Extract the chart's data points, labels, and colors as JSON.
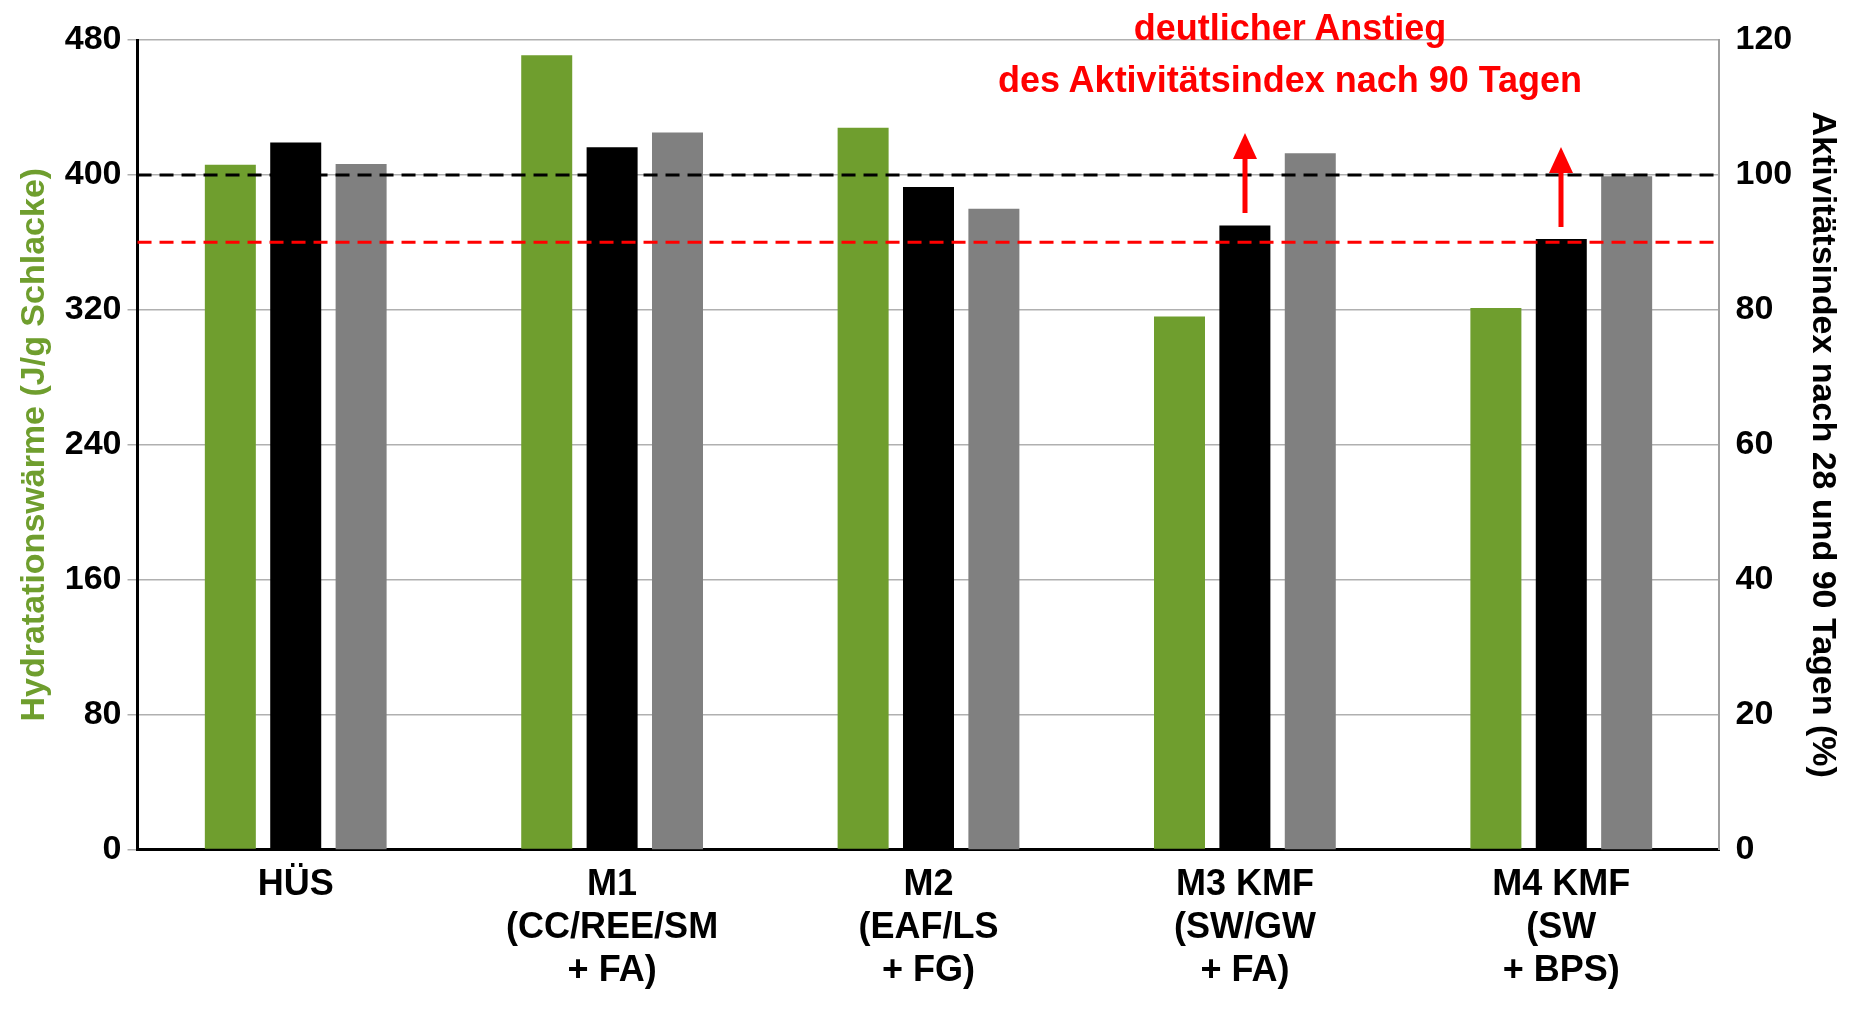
{
  "chart_data": {
    "type": "bar",
    "ylabel": "Hydratationswärme (J/g Schlacke)",
    "y2label": "Aktivitätsindex nach 28 und 90 Tagen (%)",
    "categories": [
      "HÜS",
      "M1\n(CC/REE/SM\n+ FA)",
      "M2\n(EAF/LS\n+ FG)",
      "M3 KMF\n(SW/GW\n+ FA)",
      "M4 KMF\n(SW\n+ BPS)"
    ],
    "series": [
      {
        "color": "#6f9e2e",
        "values": [
          406,
          471,
          428,
          316,
          321
        ]
      },
      {
        "color": "#000000",
        "axis": "y2",
        "values": [
          104.8,
          104.1,
          98.2,
          92.5,
          90.5
        ]
      },
      {
        "color": "#808080",
        "axis": "y2",
        "values": [
          101.6,
          106.3,
          95,
          103.2,
          99.8
        ]
      }
    ],
    "ylim": [
      0,
      480
    ],
    "yticks": [
      0,
      80,
      160,
      240,
      320,
      400,
      480
    ],
    "y2lim": [
      0,
      120
    ],
    "y2ticks": [
      0,
      20,
      40,
      60,
      80,
      100,
      120
    ],
    "ref_lines": [
      {
        "axis": "y2",
        "value": 100,
        "color": "#000000",
        "line_style": "dashed"
      },
      {
        "axis": "y2",
        "value": 90,
        "color": "#ff0000",
        "line_style": "dashed"
      }
    ],
    "annotations": [
      "deutlicher Anstieg\ndes Aktivitätsindex nach 90 Tagen"
    ],
    "grid": "y",
    "legend": false
  }
}
